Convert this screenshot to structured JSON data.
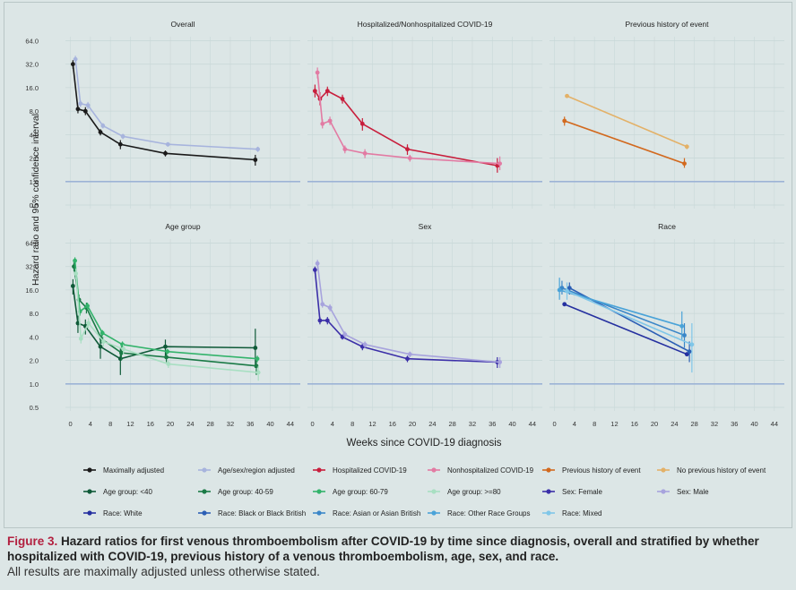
{
  "y_axis_label": "Hazard ratio and 95% confidence interval",
  "x_axis_label": "Weeks since COVID-19 diagnosis",
  "y_ticks": [
    0.5,
    1.0,
    2.0,
    4.0,
    8.0,
    16.0,
    32.0,
    64.0
  ],
  "y_tick_labels": [
    "0.5",
    "1.0",
    "2.0",
    "4.0",
    "8.0",
    "16.0",
    "32.0",
    "64.0"
  ],
  "x_ticks": [
    0,
    4,
    8,
    12,
    16,
    20,
    24,
    28,
    32,
    36,
    40,
    44
  ],
  "x_tick_labels": [
    "0",
    "4",
    "8",
    "12",
    "16",
    "20",
    "24",
    "28",
    "32",
    "36",
    "40",
    "44"
  ],
  "reference_line": 1.0,
  "colors": {
    "background": "#dce6e6",
    "grid": "#c9d8d8",
    "refline": "#9db3d6",
    "caption_label": "#b2203f"
  },
  "caption": {
    "label": "Figure 3.",
    "text": "Hazard ratios for first venous thromboembolism after COVID-19 by time since diagnosis, overall and stratified by whether hospitalized with COVID-19, previous history of a venous thromboembolism, age, sex, and race.",
    "note": "All results are maximally adjusted unless otherwise stated."
  },
  "chart_data": [
    {
      "type": "line",
      "title": "Overall",
      "xlim": [
        -1,
        46
      ],
      "ylim": [
        0.45,
        72
      ],
      "series": [
        {
          "name": "Maximally adjusted",
          "color": "#1a1a1a",
          "x": [
            0.5,
            1.5,
            3,
            6,
            10,
            19,
            37
          ],
          "y": [
            32,
            8.5,
            8.0,
            4.3,
            3.0,
            2.3,
            1.9
          ],
          "lo": [
            28,
            7.5,
            7.1,
            3.9,
            2.6,
            2.1,
            1.6
          ],
          "hi": [
            36,
            9.5,
            9.0,
            4.7,
            3.4,
            2.5,
            2.2
          ]
        },
        {
          "name": "Age/sex/region adjusted",
          "color": "#a7b4dd",
          "x": [
            1,
            2,
            3.5,
            6.5,
            10.5,
            19.5,
            37.5
          ],
          "y": [
            37,
            10,
            9.5,
            5.2,
            3.8,
            3.0,
            2.6
          ],
          "lo": [
            33,
            9,
            8.5,
            4.8,
            3.5,
            2.8,
            2.4
          ],
          "hi": [
            41,
            11,
            10.5,
            5.6,
            4.1,
            3.2,
            2.8
          ]
        }
      ]
    },
    {
      "type": "line",
      "title": "Hospitalized/Nonhospitalized COVID-19",
      "xlim": [
        -1,
        46
      ],
      "ylim": [
        0.45,
        72
      ],
      "series": [
        {
          "name": "Hospitalized COVID-19",
          "color": "#c81e3c",
          "x": [
            0.5,
            1.5,
            3,
            6,
            10,
            19,
            37
          ],
          "y": [
            14.5,
            11.5,
            14.5,
            11.5,
            5.5,
            2.6,
            1.6
          ],
          "lo": [
            12,
            9.5,
            12.5,
            10,
            4.5,
            2.2,
            1.3
          ],
          "hi": [
            17.5,
            14,
            16.5,
            13,
            6.5,
            3.0,
            2.0
          ]
        },
        {
          "name": "Nonhospitalized COVID-19",
          "color": "#e27ba3",
          "x": [
            1,
            2,
            3.5,
            6.5,
            10.5,
            19.5,
            37.5
          ],
          "y": [
            25,
            5.5,
            6.0,
            2.6,
            2.3,
            2.0,
            1.7
          ],
          "lo": [
            21,
            4.8,
            5.3,
            2.3,
            2.0,
            1.8,
            1.4
          ],
          "hi": [
            29,
            6.3,
            6.8,
            2.9,
            2.6,
            2.2,
            2.1
          ]
        }
      ]
    },
    {
      "type": "line",
      "title": "Previous history of event",
      "xlim": [
        -1,
        46
      ],
      "ylim": [
        0.45,
        72
      ],
      "series": [
        {
          "name": "Previous history of event",
          "color": "#d2691e",
          "x": [
            2,
            26
          ],
          "y": [
            6.0,
            1.7
          ],
          "lo": [
            5.2,
            1.5
          ],
          "hi": [
            6.8,
            2.0
          ]
        },
        {
          "name": "No previous history of event",
          "color": "#e3b168",
          "x": [
            2.5,
            26.5
          ],
          "y": [
            12.5,
            2.8
          ],
          "lo": [
            12.0,
            2.6
          ],
          "hi": [
            13.0,
            3.0
          ]
        }
      ]
    },
    {
      "type": "line",
      "title": "Age group",
      "xlim": [
        -1,
        46
      ],
      "ylim": [
        0.45,
        72
      ],
      "series": [
        {
          "name": "Age group: <40",
          "color": "#0f5a38",
          "x": [
            0.5,
            1.5,
            3,
            6,
            10,
            19,
            37
          ],
          "y": [
            18,
            6.0,
            5.5,
            3.0,
            2.1,
            3.0,
            2.9
          ],
          "lo": [
            14,
            4.5,
            4.3,
            2.1,
            1.3,
            2.3,
            1.6
          ],
          "hi": [
            22,
            7.5,
            6.7,
            3.9,
            2.9,
            3.7,
            5.1
          ]
        },
        {
          "name": "Age group: 40-59",
          "color": "#1a7a46",
          "x": [
            0.7,
            1.7,
            3.2,
            6.2,
            10.2,
            19.2,
            37.2
          ],
          "y": [
            32,
            12,
            9.5,
            3.8,
            2.5,
            2.2,
            1.7
          ],
          "lo": [
            28,
            10,
            8,
            3.3,
            2.0,
            1.9,
            1.3
          ],
          "hi": [
            36,
            14,
            11,
            4.3,
            3.0,
            2.5,
            2.1
          ]
        },
        {
          "name": "Age group: 60-79",
          "color": "#33b36b",
          "x": [
            0.9,
            1.9,
            3.4,
            6.4,
            10.4,
            19.4,
            37.4
          ],
          "y": [
            38,
            8.5,
            10,
            4.5,
            3.2,
            2.6,
            2.1
          ],
          "lo": [
            34,
            7.5,
            9,
            4.1,
            2.9,
            2.4,
            1.9
          ],
          "hi": [
            42,
            9.5,
            11,
            4.9,
            3.5,
            2.8,
            2.3
          ]
        },
        {
          "name": "Age group: >=80",
          "color": "#a8dfc2",
          "x": [
            1.1,
            2.1,
            3.6,
            6.6,
            10.6,
            19.6,
            37.6
          ],
          "y": [
            26,
            3.8,
            6.0,
            3.5,
            2.8,
            1.8,
            1.4
          ],
          "lo": [
            22,
            3.3,
            5.0,
            3.0,
            2.4,
            1.6,
            1.1
          ],
          "hi": [
            30,
            4.3,
            7.0,
            4.0,
            3.2,
            2.0,
            1.7
          ]
        }
      ]
    },
    {
      "type": "line",
      "title": "Sex",
      "xlim": [
        -1,
        46
      ],
      "ylim": [
        0.45,
        72
      ],
      "series": [
        {
          "name": "Sex: Female",
          "color": "#3b2fa8",
          "x": [
            0.5,
            1.5,
            3,
            6,
            10,
            19,
            37
          ],
          "y": [
            29,
            6.5,
            6.5,
            4.0,
            3.0,
            2.1,
            1.9
          ],
          "lo": [
            26,
            5.8,
            5.8,
            3.7,
            2.7,
            1.9,
            1.6
          ],
          "hi": [
            32,
            7.2,
            7.2,
            4.3,
            3.3,
            2.3,
            2.2
          ]
        },
        {
          "name": "Sex: Male",
          "color": "#a7a3dd",
          "x": [
            1,
            2,
            3.5,
            6.5,
            10.5,
            19.5,
            37.5
          ],
          "y": [
            35,
            10.5,
            9.5,
            4.3,
            3.2,
            2.4,
            1.9
          ],
          "lo": [
            31,
            9.5,
            8.5,
            3.9,
            2.9,
            2.2,
            1.6
          ],
          "hi": [
            39,
            11.5,
            10.5,
            4.7,
            3.5,
            2.6,
            2.2
          ]
        }
      ]
    },
    {
      "type": "line",
      "title": "Race",
      "xlim": [
        -1,
        46
      ],
      "ylim": [
        0.45,
        72
      ],
      "series": [
        {
          "name": "Race: White",
          "color": "#2530a0",
          "x": [
            2,
            26.5
          ],
          "y": [
            10.5,
            2.4
          ],
          "lo": [
            10.0,
            2.3
          ],
          "hi": [
            11.0,
            2.5
          ]
        },
        {
          "name": "Race: Black or Black British",
          "color": "#2c5fb5",
          "x": [
            3,
            27
          ],
          "y": [
            17,
            2.6
          ],
          "lo": [
            14,
            1.9
          ],
          "hi": [
            20,
            3.5
          ]
        },
        {
          "name": "Race: Asian or Asian British",
          "color": "#3a86c8",
          "x": [
            1.5,
            26
          ],
          "y": [
            17,
            4.2
          ],
          "lo": [
            14,
            2.9
          ],
          "hi": [
            21,
            6.0
          ]
        },
        {
          "name": "Race: Other Race Groups",
          "color": "#4aa3d8",
          "x": [
            1,
            25.5
          ],
          "y": [
            16,
            5.5
          ],
          "lo": [
            12,
            3.7
          ],
          "hi": [
            23,
            8.5
          ]
        },
        {
          "name": "Race: Mixed",
          "color": "#7fc6e8",
          "x": [
            2.5,
            27.5
          ],
          "y": [
            15.5,
            3.2
          ],
          "lo": [
            12,
            1.4
          ],
          "hi": [
            20,
            6.0
          ]
        }
      ]
    }
  ]
}
